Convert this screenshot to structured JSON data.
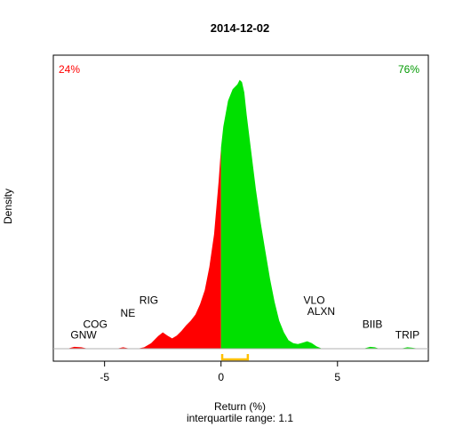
{
  "chart_data": {
    "type": "area",
    "title": "2014-12-02",
    "xlabel": "Return (%)",
    "subtitle": "interquartile range: 1.1",
    "ylabel": "Density",
    "xlim": [
      -7.2,
      8.9
    ],
    "ylim": [
      0,
      0.62
    ],
    "x_ticks": [
      -5,
      0,
      5
    ],
    "left_share": "24%",
    "right_share": "76%",
    "colors": {
      "negative": "#ff0000",
      "positive": "#00e000",
      "iqr": "#ffc000",
      "axis": "#000000",
      "baseline": "#b0b0b0"
    },
    "density": {
      "x": [
        -6.6,
        -6.3,
        -6.0,
        -5.7,
        -5.4,
        -5.1,
        -4.8,
        -4.5,
        -4.2,
        -3.9,
        -3.6,
        -3.3,
        -3.0,
        -2.7,
        -2.5,
        -2.3,
        -2.1,
        -1.9,
        -1.7,
        -1.5,
        -1.3,
        -1.1,
        -0.9,
        -0.7,
        -0.5,
        -0.3,
        -0.1,
        0.0,
        0.1,
        0.3,
        0.5,
        0.7,
        0.8,
        0.9,
        1.0,
        1.1,
        1.3,
        1.5,
        1.7,
        1.9,
        2.1,
        2.3,
        2.5,
        2.7,
        2.9,
        3.1,
        3.3,
        3.5,
        3.7,
        3.9,
        4.1,
        4.3,
        4.6,
        4.9,
        5.2,
        5.5,
        5.8,
        6.1,
        6.4,
        6.6,
        6.8,
        7.1,
        7.4,
        7.7,
        8.0,
        8.2,
        8.5
      ],
      "y": [
        0,
        0.004,
        0.003,
        0,
        0,
        0,
        0,
        0,
        0.003,
        0,
        0,
        0.003,
        0.012,
        0.027,
        0.035,
        0.028,
        0.022,
        0.028,
        0.038,
        0.05,
        0.06,
        0.073,
        0.095,
        0.125,
        0.175,
        0.245,
        0.36,
        0.43,
        0.475,
        0.53,
        0.555,
        0.565,
        0.575,
        0.57,
        0.548,
        0.5,
        0.42,
        0.34,
        0.27,
        0.21,
        0.15,
        0.1,
        0.06,
        0.035,
        0.018,
        0.012,
        0.01,
        0.013,
        0.016,
        0.012,
        0.005,
        0.001,
        0,
        0,
        0,
        0,
        0,
        0,
        0.004,
        0.003,
        0,
        0,
        0,
        0,
        0.003,
        0.002,
        0
      ]
    },
    "iqr": [
      0.05,
      1.15
    ],
    "annotations": [
      {
        "text": "GNW",
        "x": -5.9,
        "y": 0.022
      },
      {
        "text": "COG",
        "x": -5.4,
        "y": 0.045
      },
      {
        "text": "NE",
        "x": -4.0,
        "y": 0.068
      },
      {
        "text": "RIG",
        "x": -3.1,
        "y": 0.096
      },
      {
        "text": "VLO",
        "x": 4.0,
        "y": 0.096
      },
      {
        "text": "ALXN",
        "x": 4.3,
        "y": 0.072
      },
      {
        "text": "BIIB",
        "x": 6.5,
        "y": 0.045
      },
      {
        "text": "TRIP",
        "x": 8.0,
        "y": 0.022
      }
    ]
  }
}
